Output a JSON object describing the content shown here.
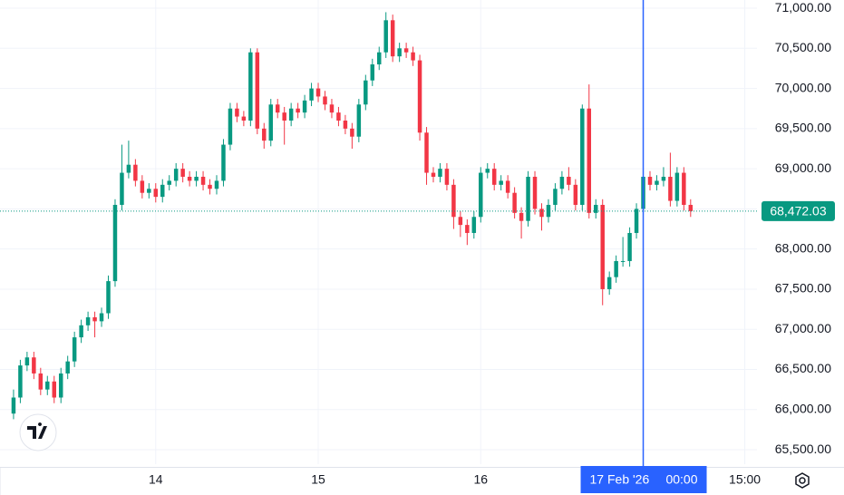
{
  "chart_data": {
    "type": "candlestick",
    "x": [
      3,
      4,
      5,
      6,
      7,
      8,
      9,
      10,
      11,
      12,
      13,
      14,
      15,
      16,
      17,
      18,
      19,
      20,
      21,
      22,
      23,
      24,
      25,
      26,
      27,
      28,
      29,
      30,
      31,
      32,
      33,
      34,
      35,
      36,
      37,
      38,
      39,
      40,
      41,
      42,
      43,
      44,
      45,
      46,
      47,
      48,
      49,
      50,
      51,
      52,
      53,
      54,
      55,
      56,
      57,
      58,
      59,
      60,
      61,
      62,
      63,
      64,
      65,
      66,
      67,
      68,
      69,
      70,
      71,
      72,
      73,
      74,
      75,
      76,
      77,
      78,
      79,
      80,
      81,
      82,
      83,
      84,
      85,
      86,
      87,
      88,
      89,
      90,
      91,
      92,
      93,
      94,
      95,
      96,
      97,
      98,
      99,
      100,
      101,
      102,
      103
    ],
    "open": [
      65950,
      66150,
      66550,
      66650,
      66450,
      66250,
      66350,
      66150,
      66450,
      66600,
      66900,
      67050,
      67150,
      67100,
      67200,
      67600,
      68550,
      68950,
      69050,
      68850,
      68700,
      68750,
      68650,
      68800,
      68850,
      69000,
      68900,
      68850,
      68900,
      68800,
      68750,
      68850,
      69300,
      69750,
      69650,
      69600,
      70450,
      69500,
      69350,
      69800,
      69700,
      69600,
      69750,
      69700,
      69850,
      70000,
      69900,
      69800,
      69700,
      69600,
      69500,
      69400,
      69800,
      70100,
      70300,
      70450,
      70850,
      70400,
      70500,
      70450,
      70350,
      69450,
      68950,
      68900,
      69000,
      68800,
      68400,
      68300,
      68200,
      68400,
      68950,
      69000,
      68800,
      68850,
      68700,
      68450,
      68350,
      68900,
      68500,
      68400,
      68550,
      68750,
      68900,
      68800,
      68550,
      69750,
      68450,
      68550,
      67500,
      67650,
      67850,
      67850,
      68200,
      68500,
      68900,
      68800,
      68850,
      68900,
      68600,
      68950,
      68550
    ],
    "high": [
      66250,
      66620,
      66720,
      66720,
      66520,
      66420,
      66420,
      66520,
      66670,
      66970,
      67120,
      67220,
      67220,
      67270,
      67670,
      68620,
      69300,
      69350,
      69120,
      68920,
      68820,
      68820,
      68870,
      68920,
      69070,
      69070,
      68970,
      68970,
      68970,
      68870,
      68920,
      69370,
      69820,
      69820,
      69720,
      70500,
      70500,
      69570,
      69870,
      69870,
      69770,
      69820,
      69820,
      69920,
      70070,
      70070,
      69970,
      69870,
      69770,
      69670,
      69570,
      69870,
      70170,
      70370,
      70520,
      70950,
      70920,
      70570,
      70570,
      70520,
      70420,
      69520,
      69020,
      69070,
      69070,
      68870,
      68470,
      68370,
      68470,
      69020,
      69070,
      69070,
      68920,
      68920,
      68770,
      68520,
      68970,
      68970,
      68570,
      68620,
      68820,
      68970,
      69020,
      68870,
      69800,
      70050,
      68620,
      68620,
      67720,
      67920,
      68150,
      68270,
      68570,
      68970,
      68970,
      68920,
      69020,
      69200,
      69020,
      69020,
      68620
    ],
    "low": [
      65880,
      66080,
      66480,
      66380,
      66180,
      66180,
      66080,
      66080,
      66380,
      66530,
      66830,
      66980,
      66900,
      67030,
      67130,
      67530,
      68480,
      68880,
      68780,
      68630,
      68630,
      68580,
      68580,
      68730,
      68780,
      68830,
      68780,
      68780,
      68730,
      68680,
      68680,
      68780,
      69230,
      69580,
      69530,
      69530,
      69430,
      69250,
      69280,
      69630,
      69300,
      69530,
      69630,
      69630,
      69780,
      69830,
      69730,
      69630,
      69530,
      69430,
      69250,
      69330,
      69730,
      70030,
      70230,
      70380,
      70330,
      70330,
      70380,
      70280,
      69350,
      68800,
      68830,
      68830,
      68730,
      68250,
      68150,
      68050,
      68130,
      68330,
      68880,
      68730,
      68730,
      68630,
      68380,
      68130,
      68280,
      68430,
      68230,
      68330,
      68480,
      68680,
      68730,
      68480,
      68480,
      68380,
      68380,
      67300,
      67430,
      67580,
      67780,
      67780,
      68130,
      68430,
      68730,
      68730,
      68780,
      68530,
      68530,
      68480,
      68400
    ],
    "close": [
      66150,
      66550,
      66650,
      66450,
      66250,
      66350,
      66150,
      66450,
      66600,
      66900,
      67050,
      67150,
      67100,
      67200,
      67600,
      68550,
      68950,
      69050,
      68850,
      68700,
      68750,
      68650,
      68800,
      68850,
      69000,
      68900,
      68850,
      68900,
      68800,
      68750,
      68850,
      69300,
      69750,
      69650,
      69600,
      70450,
      69500,
      69350,
      69800,
      69700,
      69600,
      69750,
      69700,
      69850,
      70000,
      69900,
      69800,
      69700,
      69600,
      69500,
      69400,
      69800,
      70100,
      70300,
      70450,
      70850,
      70400,
      70500,
      70450,
      70350,
      69450,
      68950,
      68900,
      69000,
      68800,
      68400,
      68300,
      68200,
      68400,
      68950,
      69000,
      68800,
      68850,
      68700,
      68450,
      68350,
      68900,
      68500,
      68400,
      68550,
      68750,
      68900,
      68800,
      68550,
      69750,
      68450,
      68550,
      67500,
      67650,
      67850,
      67850,
      68200,
      68500,
      68900,
      68800,
      68850,
      68900,
      68600,
      68950,
      68550,
      68472.03
    ],
    "up_color": "#089981",
    "down_color": "#f23645",
    "xlim": [
      1,
      112.8
    ],
    "xticks": [
      {
        "value": 24,
        "label": "14"
      },
      {
        "value": 48,
        "label": "15"
      },
      {
        "value": 72,
        "label": "16"
      },
      {
        "value": 111,
        "label": "15:00"
      }
    ],
    "ylim": [
      65320,
      71102
    ],
    "yticks": [
      {
        "value": 65500,
        "label": "65,500.00"
      },
      {
        "value": 66000,
        "label": "66,000.00"
      },
      {
        "value": 66500,
        "label": "66,500.00"
      },
      {
        "value": 67000,
        "label": "67,000.00"
      },
      {
        "value": 67500,
        "label": "67,500.00"
      },
      {
        "value": 68000,
        "label": "68,000.00"
      },
      {
        "value": 68500,
        "label": "68,500.00"
      },
      {
        "value": 69000,
        "label": "69,000.00"
      },
      {
        "value": 69500,
        "label": "69,500.00"
      },
      {
        "value": 70000,
        "label": "70,000.00"
      },
      {
        "value": 70500,
        "label": "70,500.00"
      },
      {
        "value": 71000,
        "label": "71,000.00"
      }
    ],
    "grid": true,
    "last_price": {
      "value": 68472.03,
      "label": "68,472.03"
    },
    "crosshair": {
      "x": 96,
      "date": "17 Feb '26",
      "time": "00:00"
    }
  }
}
